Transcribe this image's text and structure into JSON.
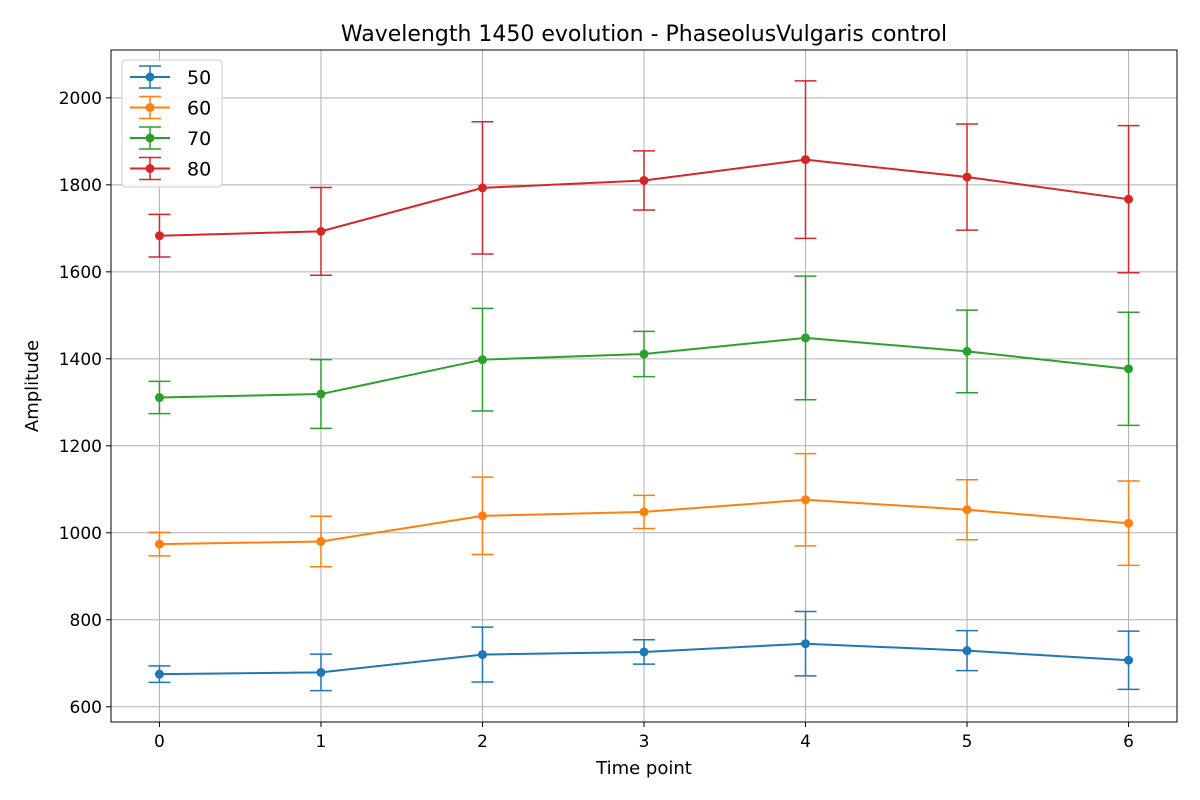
{
  "chart_data": {
    "type": "line",
    "title": "Wavelength 1450 evolution - PhaseolusVulgaris control",
    "xlabel": "Time point",
    "ylabel": "Amplitude",
    "x": [
      0,
      1,
      2,
      3,
      4,
      5,
      6
    ],
    "xlim": [
      -0.3,
      6.3
    ],
    "ylim": [
      565,
      2110
    ],
    "xticks": [
      0,
      1,
      2,
      3,
      4,
      5,
      6
    ],
    "yticks": [
      600,
      800,
      1000,
      1200,
      1400,
      1600,
      1800,
      2000
    ],
    "grid": true,
    "legend_position": "top-left",
    "error_bars": true,
    "series": [
      {
        "name": "50",
        "color": "#1f77b4",
        "values": [
          675,
          679,
          720,
          726,
          745,
          729,
          707
        ],
        "errors": [
          19,
          42,
          63,
          28,
          74,
          46,
          67
        ]
      },
      {
        "name": "60",
        "color": "#ff7f0e",
        "values": [
          974,
          980,
          1039,
          1048,
          1076,
          1053,
          1022
        ],
        "errors": [
          27,
          58,
          89,
          38,
          106,
          69,
          97
        ]
      },
      {
        "name": "70",
        "color": "#2ca02c",
        "values": [
          1311,
          1319,
          1398,
          1411,
          1448,
          1417,
          1377
        ],
        "errors": [
          37,
          79,
          118,
          52,
          142,
          95,
          130
        ]
      },
      {
        "name": "80",
        "color": "#d62728",
        "values": [
          1683,
          1693,
          1793,
          1810,
          1858,
          1818,
          1767
        ],
        "errors": [
          49,
          101,
          152,
          68,
          181,
          122,
          169
        ]
      }
    ]
  }
}
